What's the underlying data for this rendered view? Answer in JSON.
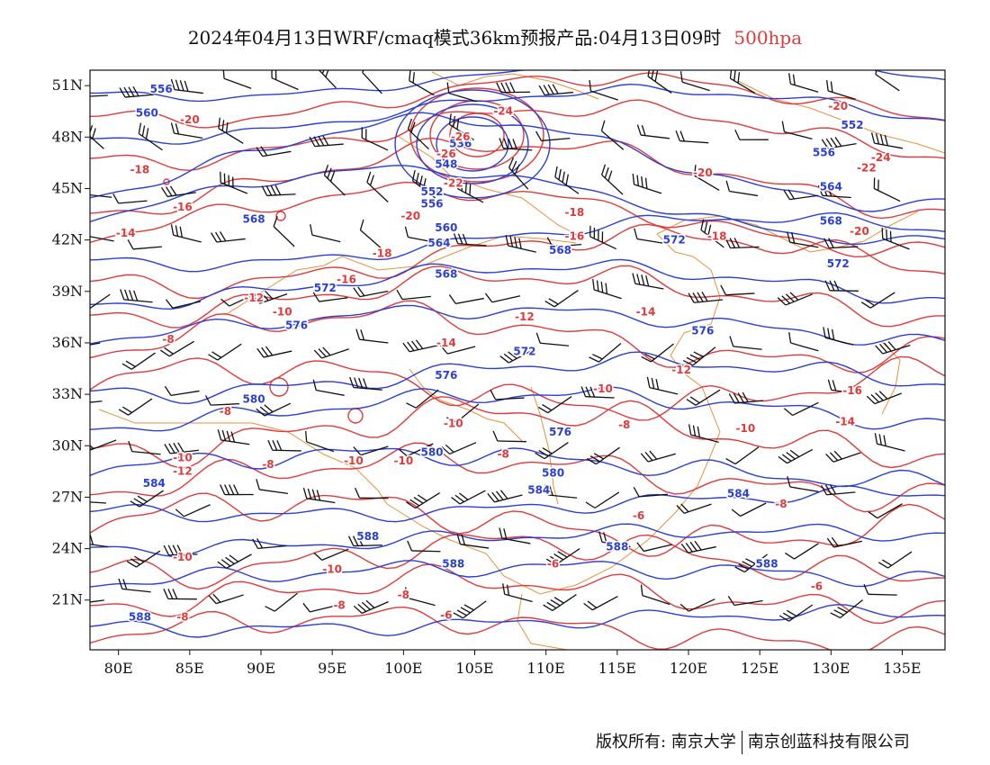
{
  "title": {
    "main": "2024年04月13日WRF/cmaq模式36km预报产品:04月13日09时",
    "level": "500hpa"
  },
  "footer": {
    "left": "版权所有: 南京大学",
    "right": "南京创蓝科技有限公司"
  },
  "colors": {
    "height_contour": "#2a3fd6",
    "temperature_contour": "#e03a3a",
    "coastline": "#e8913a",
    "wind_barb": "#111111"
  },
  "axes": {
    "lon_ticks": [
      "80E",
      "85E",
      "90E",
      "95E",
      "100E",
      "105E",
      "110E",
      "115E",
      "120E",
      "125E",
      "130E",
      "135E"
    ],
    "lat_ticks": [
      "51N",
      "48N",
      "45N",
      "42N",
      "39N",
      "36N",
      "33N",
      "30N",
      "27N",
      "24N",
      "21N"
    ]
  },
  "height_labels": [
    {
      "text": "556",
      "lon": 83.0,
      "lat": 50.6
    },
    {
      "text": "560",
      "lon": 82.0,
      "lat": 49.2
    },
    {
      "text": "568",
      "lon": 89.5,
      "lat": 43.0
    },
    {
      "text": "572",
      "lon": 94.5,
      "lat": 39.0
    },
    {
      "text": "576",
      "lon": 92.5,
      "lat": 36.8
    },
    {
      "text": "580",
      "lon": 89.5,
      "lat": 32.5
    },
    {
      "text": "584",
      "lon": 82.5,
      "lat": 27.6
    },
    {
      "text": "588",
      "lon": 81.5,
      "lat": 19.8
    },
    {
      "text": "588",
      "lon": 97.5,
      "lat": 24.5
    },
    {
      "text": "588",
      "lon": 103.5,
      "lat": 22.9
    },
    {
      "text": "588",
      "lon": 115.0,
      "lat": 23.9
    },
    {
      "text": "588",
      "lon": 125.5,
      "lat": 22.9
    },
    {
      "text": "584",
      "lon": 109.5,
      "lat": 27.2
    },
    {
      "text": "584",
      "lon": 123.5,
      "lat": 27.0
    },
    {
      "text": "580",
      "lon": 102.0,
      "lat": 29.4
    },
    {
      "text": "580",
      "lon": 110.5,
      "lat": 28.2
    },
    {
      "text": "576",
      "lon": 103.0,
      "lat": 33.9
    },
    {
      "text": "576",
      "lon": 111.0,
      "lat": 30.6
    },
    {
      "text": "576",
      "lon": 121.0,
      "lat": 36.5
    },
    {
      "text": "572",
      "lon": 108.5,
      "lat": 35.3
    },
    {
      "text": "572",
      "lon": 119.0,
      "lat": 41.8
    },
    {
      "text": "572",
      "lon": 130.5,
      "lat": 40.4
    },
    {
      "text": "568",
      "lon": 103.0,
      "lat": 39.8
    },
    {
      "text": "568",
      "lon": 111.0,
      "lat": 41.2
    },
    {
      "text": "568",
      "lon": 130.0,
      "lat": 42.9
    },
    {
      "text": "564",
      "lon": 102.5,
      "lat": 41.6
    },
    {
      "text": "564",
      "lon": 130.0,
      "lat": 44.9
    },
    {
      "text": "560",
      "lon": 103.0,
      "lat": 42.5
    },
    {
      "text": "556",
      "lon": 102.0,
      "lat": 43.9
    },
    {
      "text": "552",
      "lon": 102.0,
      "lat": 44.6
    },
    {
      "text": "548",
      "lon": 103.0,
      "lat": 46.2
    },
    {
      "text": "536",
      "lon": 104.0,
      "lat": 47.4
    },
    {
      "text": "556",
      "lon": 129.5,
      "lat": 46.9
    },
    {
      "text": "552",
      "lon": 131.5,
      "lat": 48.5
    }
  ],
  "temperature_labels": [
    {
      "text": "-20",
      "lon": 85.0,
      "lat": 48.8
    },
    {
      "text": "-18",
      "lon": 81.5,
      "lat": 45.9
    },
    {
      "text": "-16",
      "lon": 84.5,
      "lat": 43.7
    },
    {
      "text": "-14",
      "lon": 80.5,
      "lat": 42.2
    },
    {
      "text": "-12",
      "lon": 89.5,
      "lat": 38.4
    },
    {
      "text": "-10",
      "lon": 91.5,
      "lat": 37.6
    },
    {
      "text": "-8",
      "lon": 83.5,
      "lat": 36.0
    },
    {
      "text": "-8",
      "lon": 87.5,
      "lat": 31.8
    },
    {
      "text": "-8",
      "lon": 90.5,
      "lat": 28.7
    },
    {
      "text": "-10",
      "lon": 84.5,
      "lat": 29.1
    },
    {
      "text": "-12",
      "lon": 84.5,
      "lat": 28.3
    },
    {
      "text": "-10",
      "lon": 84.5,
      "lat": 23.3
    },
    {
      "text": "-10",
      "lon": 95.0,
      "lat": 22.6
    },
    {
      "text": "-8",
      "lon": 84.5,
      "lat": 19.8
    },
    {
      "text": "-8",
      "lon": 95.5,
      "lat": 20.5
    },
    {
      "text": "-10",
      "lon": 96.5,
      "lat": 28.9
    },
    {
      "text": "-10",
      "lon": 100.0,
      "lat": 28.9
    },
    {
      "text": "-10",
      "lon": 103.5,
      "lat": 31.1
    },
    {
      "text": "-8",
      "lon": 107.0,
      "lat": 29.3
    },
    {
      "text": "-8",
      "lon": 100.0,
      "lat": 21.1
    },
    {
      "text": "-6",
      "lon": 103.0,
      "lat": 19.9
    },
    {
      "text": "-6",
      "lon": 110.5,
      "lat": 22.9
    },
    {
      "text": "-6",
      "lon": 116.5,
      "lat": 25.7
    },
    {
      "text": "-8",
      "lon": 115.5,
      "lat": 31.0
    },
    {
      "text": "-10",
      "lon": 114.0,
      "lat": 33.1
    },
    {
      "text": "-12",
      "lon": 119.5,
      "lat": 34.2
    },
    {
      "text": "-14",
      "lon": 103.0,
      "lat": 35.8
    },
    {
      "text": "-12",
      "lon": 108.5,
      "lat": 37.3
    },
    {
      "text": "-14",
      "lon": 117.0,
      "lat": 37.6
    },
    {
      "text": "-16",
      "lon": 96.0,
      "lat": 39.5
    },
    {
      "text": "-18",
      "lon": 98.5,
      "lat": 41.0
    },
    {
      "text": "-16",
      "lon": 112.0,
      "lat": 42.0
    },
    {
      "text": "-18",
      "lon": 112.0,
      "lat": 43.4
    },
    {
      "text": "-18",
      "lon": 122.0,
      "lat": 42.0
    },
    {
      "text": "-20",
      "lon": 100.5,
      "lat": 43.2
    },
    {
      "text": "-22",
      "lon": 103.5,
      "lat": 45.1
    },
    {
      "text": "-26",
      "lon": 103.0,
      "lat": 46.8
    },
    {
      "text": "-26",
      "lon": 104.0,
      "lat": 47.8
    },
    {
      "text": "-24",
      "lon": 107.0,
      "lat": 49.3
    },
    {
      "text": "-20",
      "lon": 121.0,
      "lat": 45.7
    },
    {
      "text": "-20",
      "lon": 132.0,
      "lat": 42.3
    },
    {
      "text": "-22",
      "lon": 132.5,
      "lat": 46.0
    },
    {
      "text": "-24",
      "lon": 133.5,
      "lat": 46.6
    },
    {
      "text": "-20",
      "lon": 130.5,
      "lat": 49.6
    },
    {
      "text": "-16",
      "lon": 131.5,
      "lat": 33.0
    },
    {
      "text": "-14",
      "lon": 131.0,
      "lat": 31.2
    },
    {
      "text": "-10",
      "lon": 124.0,
      "lat": 30.8
    },
    {
      "text": "-8",
      "lon": 126.5,
      "lat": 26.4
    },
    {
      "text": "-6",
      "lon": 129.0,
      "lat": 21.6
    }
  ]
}
